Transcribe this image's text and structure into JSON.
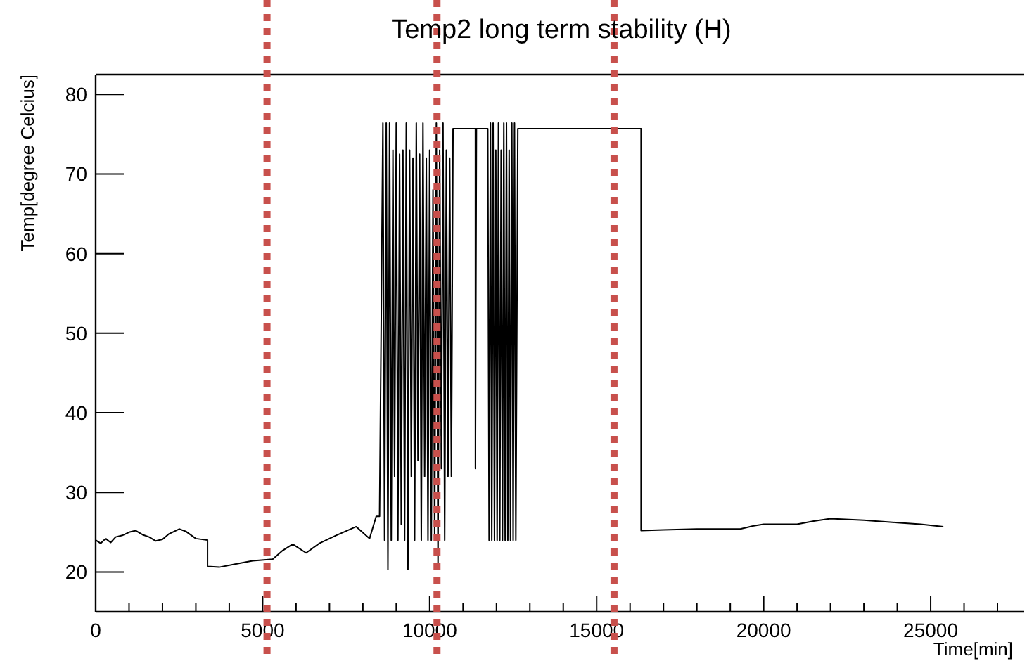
{
  "chart_data": {
    "type": "line",
    "title": "Temp2 long term stability (H)",
    "xlabel": "Time[min]",
    "ylabel": "Temp[degree Celcius]",
    "xlim": [
      0,
      27800
    ],
    "ylim": [
      15,
      82.5
    ],
    "xticks": [
      0,
      {
        "value": 1000,
        "label": null
      },
      {
        "value": 2000,
        "label": null
      },
      {
        "value": 3000,
        "label": null
      },
      {
        "value": 4000,
        "label": null
      },
      5000,
      {
        "value": 6000,
        "label": null
      },
      {
        "value": 7000,
        "label": null
      },
      {
        "value": 8000,
        "label": null
      },
      {
        "value": 9000,
        "label": null
      },
      10000,
      {
        "value": 11000,
        "label": null
      },
      {
        "value": 12000,
        "label": null
      },
      {
        "value": 13000,
        "label": null
      },
      {
        "value": 14000,
        "label": null
      },
      15000,
      {
        "value": 16000,
        "label": null
      },
      {
        "value": 17000,
        "label": null
      },
      {
        "value": 18000,
        "label": null
      },
      {
        "value": 19000,
        "label": null
      },
      20000,
      {
        "value": 21000,
        "label": null
      },
      {
        "value": 22000,
        "label": null
      },
      {
        "value": 23000,
        "label": null
      },
      {
        "value": 24000,
        "label": null
      },
      25000,
      {
        "value": 26000,
        "label": null
      },
      {
        "value": 27000,
        "label": null
      }
    ],
    "yticks": [
      20,
      30,
      40,
      50,
      60,
      70,
      80
    ],
    "grid": false,
    "marker": "none",
    "line_style": "solid",
    "ref_lines": [
      {
        "axis": "x",
        "value": 5130,
        "color": "#c8504c",
        "line_style": "dotted"
      },
      {
        "axis": "x",
        "value": 10220,
        "color": "#c8504c",
        "line_style": "dotted"
      },
      {
        "axis": "x",
        "value": 15520,
        "color": "#c8504c",
        "line_style": "dotted"
      }
    ],
    "series": [
      {
        "color": "#000000",
        "x": [
          0,
          150,
          300,
          450,
          600,
          800,
          1000,
          1200,
          1400,
          1600,
          1800,
          2000,
          2200,
          2500,
          2700,
          3000,
          3350,
          3350,
          3700,
          4200,
          4700,
          5300,
          5600,
          5900,
          6300,
          6700,
          7200,
          7800,
          8200,
          8400,
          8500,
          8600,
          8650,
          8700,
          8750,
          8800,
          8850,
          8900,
          8950,
          9000,
          9050,
          9100,
          9150,
          9200,
          9250,
          9300,
          9350,
          9400,
          9450,
          9500,
          9550,
          9600,
          9650,
          9700,
          9750,
          9800,
          9850,
          9900,
          9950,
          10000,
          10050,
          10100,
          10150,
          10200,
          10250,
          10300,
          10350,
          10400,
          10450,
          10500,
          10550,
          10600,
          10650,
          10700,
          11370,
          11370,
          11400,
          11740,
          11780,
          11820,
          11860,
          11900,
          11940,
          11980,
          12020,
          12060,
          12100,
          12140,
          12180,
          12220,
          12260,
          12300,
          12340,
          12380,
          12420,
          12460,
          12500,
          12540,
          12580,
          12640,
          16330,
          16330,
          17000,
          18000,
          19300,
          19700,
          20000,
          21000,
          21500,
          22000,
          23000,
          24000,
          24700,
          25380
        ],
        "values": [
          24,
          23.6,
          24.2,
          23.7,
          24.4,
          24.6,
          25,
          25.2,
          24.7,
          24.4,
          23.9,
          24.1,
          24.8,
          25.4,
          25.1,
          24.2,
          24,
          20.7,
          20.6,
          21,
          21.4,
          21.6,
          22.7,
          23.5,
          22.4,
          23.6,
          24.6,
          25.7,
          24.2,
          27,
          27,
          76.4,
          24,
          76.4,
          20.3,
          76.4,
          24,
          73,
          32,
          76.4,
          24,
          72.5,
          26,
          73,
          24,
          76.4,
          20.3,
          73,
          32,
          72,
          24,
          76.4,
          34,
          72.5,
          24,
          76.4,
          32,
          72,
          24,
          73,
          24,
          68,
          24,
          76.4,
          20.3,
          73,
          33,
          76.4,
          24,
          73,
          32,
          72,
          32,
          75.7,
          75.7,
          33,
          75.7,
          75.7,
          24,
          76.4,
          24,
          76.4,
          24,
          73,
          24,
          76.4,
          24,
          73,
          24,
          76.4,
          24,
          76.4,
          24,
          73,
          24,
          76.4,
          24,
          76.4,
          24,
          75.7,
          75.7,
          25.2,
          25.3,
          25.4,
          25.4,
          25.8,
          26,
          26,
          26.4,
          26.7,
          26.5,
          26.2,
          26,
          25.7
        ]
      }
    ]
  }
}
